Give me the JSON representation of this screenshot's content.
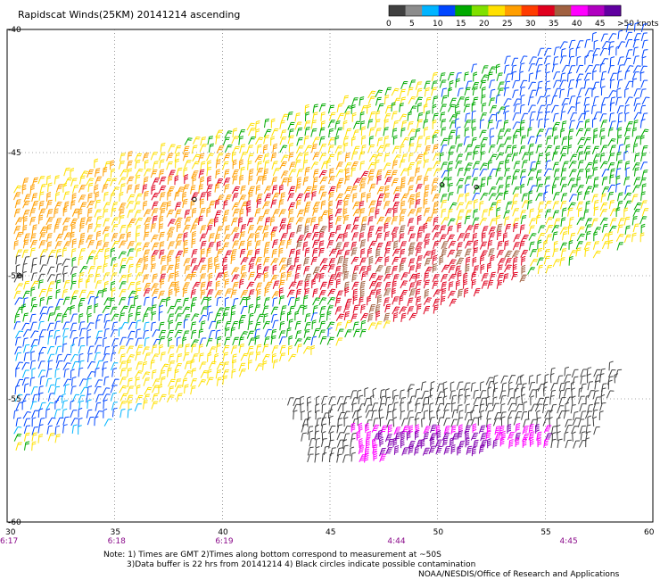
{
  "chart_data": {
    "type": "scatter",
    "title": "Rapidscat Winds(25KM) 20141214 ascending",
    "x_ticks": [
      "30",
      "35",
      "40",
      "45",
      "50",
      "55",
      "60"
    ],
    "y_ticks": [
      "-40",
      "-45",
      "-50",
      "-55",
      "-60"
    ],
    "xlim": [
      30,
      60
    ],
    "ylim": [
      -60,
      -40
    ],
    "grid": true,
    "time_labels": [
      {
        "lon": 30,
        "text": "6:17"
      },
      {
        "lon": 35,
        "text": "6:18"
      },
      {
        "lon": 40,
        "text": "6:19"
      },
      {
        "lon": 48,
        "text": "4:44"
      },
      {
        "lon": 56,
        "text": "4:45"
      }
    ],
    "legend": {
      "position": "top-right",
      "labels": [
        "0",
        "5",
        "10",
        "15",
        "20",
        "25",
        "30",
        "35",
        "40",
        "45",
        ">50 knots"
      ],
      "colors": [
        "#404040",
        "#8c8c8c",
        "#00b4ff",
        "#0046ff",
        "#00aa00",
        "#80e000",
        "#ffe000",
        "#ff9e00",
        "#ff3c00",
        "#e0001e",
        "#a06040",
        "#ff00ff",
        "#b000c0",
        "#6000a0"
      ]
    },
    "speed_colors": [
      {
        "max": 5,
        "color": "#404040"
      },
      {
        "max": 10,
        "color": "#00b4ff"
      },
      {
        "max": 15,
        "color": "#0046ff"
      },
      {
        "max": 20,
        "color": "#00aa00"
      },
      {
        "max": 25,
        "color": "#ffe000"
      },
      {
        "max": 30,
        "color": "#ff9e00"
      },
      {
        "max": 35,
        "color": "#e0001e"
      },
      {
        "max": 40,
        "color": "#a06040"
      },
      {
        "max": 45,
        "color": "#ff00ff"
      },
      {
        "max": 999,
        "color": "#8000b0"
      }
    ],
    "swath_main": {
      "corners_lonlat": [
        [
          30,
          -46.5
        ],
        [
          60,
          -39.8
        ],
        [
          60,
          -48.5
        ],
        [
          30,
          -57.5
        ]
      ],
      "regions": [
        {
          "name": "north-east-green",
          "lon": [
            50,
            60
          ],
          "lat": [
            -47,
            -40
          ],
          "speed": [
            14,
            20
          ]
        },
        {
          "name": "north-east-blue",
          "lon": [
            53,
            60
          ],
          "lat": [
            -44,
            -40
          ],
          "speed": [
            10,
            15
          ]
        },
        {
          "name": "north-yellow",
          "lon": [
            30,
            50
          ],
          "lat": [
            -49,
            -45
          ],
          "speed": [
            20,
            27
          ]
        },
        {
          "name": "centre-orange",
          "lon": [
            36,
            50
          ],
          "lat": [
            -51,
            -46
          ],
          "speed": [
            25,
            32
          ]
        },
        {
          "name": "centre-red",
          "lon": [
            43,
            54
          ],
          "lat": [
            -52,
            -48
          ],
          "speed": [
            30,
            36
          ]
        },
        {
          "name": "west-orange",
          "lon": [
            30,
            34
          ],
          "lat": [
            -49,
            -47
          ],
          "speed": [
            26,
            30
          ]
        },
        {
          "name": "west-black",
          "lon": [
            30,
            33
          ],
          "lat": [
            -50.5,
            -49.5
          ],
          "speed": [
            2,
            5
          ]
        },
        {
          "name": "south-green",
          "lon": [
            30,
            45
          ],
          "lat": [
            -55,
            -51
          ],
          "speed": [
            14,
            20
          ]
        },
        {
          "name": "south-blue",
          "lon": [
            30,
            37
          ],
          "lat": [
            -56.5,
            -52
          ],
          "speed": [
            8,
            14
          ]
        },
        {
          "name": "south-yellow",
          "lon": [
            35,
            45
          ],
          "lat": [
            -55.5,
            -53
          ],
          "speed": [
            20,
            24
          ]
        }
      ]
    },
    "swath_south": {
      "corners_lonlat": [
        [
          43,
          -55.2
        ],
        [
          58.5,
          -53.8
        ],
        [
          57,
          -57
        ],
        [
          44,
          -57.8
        ]
      ],
      "regions": [
        {
          "name": "south-black",
          "lon": [
            43,
            59
          ],
          "lat": [
            -56,
            -53.5
          ],
          "speed": [
            2,
            5
          ]
        },
        {
          "name": "south-magenta",
          "lon": [
            46,
            55
          ],
          "lat": [
            -57.8,
            -56.2
          ],
          "speed": [
            40,
            46
          ]
        },
        {
          "name": "south-violet",
          "lon": [
            47,
            52
          ],
          "lat": [
            -57.5,
            -56.5
          ],
          "speed": [
            45,
            55
          ]
        }
      ]
    },
    "contamination_circles": [
      {
        "lon": 38.7,
        "lat": -46.9
      },
      {
        "lon": 50.2,
        "lat": -46.3
      },
      {
        "lon": 51.8,
        "lat": -46.4
      },
      {
        "lon": 30.6,
        "lat": -50.0
      }
    ]
  },
  "notes": {
    "line1": "Note: 1) Times are GMT 2)Times along bottom correspond to measurement at ~50S",
    "line2": "3)Data buffer is 22 hrs from 20141214 4) Black circles indicate possible contamination",
    "credit": "NOAA/NESDIS/Office of Research and Applications"
  }
}
